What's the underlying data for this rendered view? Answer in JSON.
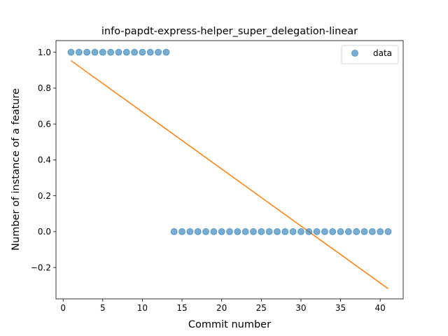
{
  "chart_data": {
    "type": "scatter",
    "title": "info-papdt-express-helper_super_delegation-linear",
    "xlabel": "Commit number",
    "ylabel": "Number of instance of a feature",
    "xlim": [
      -0.9,
      42.9
    ],
    "ylim": [
      -0.375,
      1.065
    ],
    "xticks": [
      0,
      5,
      10,
      15,
      20,
      25,
      30,
      35,
      40
    ],
    "yticks": [
      -0.2,
      0.0,
      0.2,
      0.4,
      0.6,
      0.8,
      1.0
    ],
    "xtick_labels": [
      "0",
      "5",
      "10",
      "15",
      "20",
      "25",
      "30",
      "35",
      "40"
    ],
    "ytick_labels": [
      "−0.2",
      "0.0",
      "0.2",
      "0.4",
      "0.6",
      "0.8",
      "1.0"
    ],
    "legend_position": "top-right",
    "series": [
      {
        "name": "data",
        "kind": "scatter",
        "color": "#1f77b4",
        "x": [
          1,
          2,
          3,
          4,
          5,
          6,
          7,
          8,
          9,
          10,
          11,
          12,
          13,
          14,
          15,
          16,
          17,
          18,
          19,
          20,
          21,
          22,
          23,
          24,
          25,
          26,
          27,
          28,
          29,
          30,
          31,
          32,
          33,
          34,
          35,
          36,
          37,
          38,
          39,
          40,
          41
        ],
        "y": [
          1,
          1,
          1,
          1,
          1,
          1,
          1,
          1,
          1,
          1,
          1,
          1,
          1,
          0,
          0,
          0,
          0,
          0,
          0,
          0,
          0,
          0,
          0,
          0,
          0,
          0,
          0,
          0,
          0,
          0,
          0,
          0,
          0,
          0,
          0,
          0,
          0,
          0,
          0,
          0,
          0
        ]
      },
      {
        "kind": "line",
        "color": "#ff7f0e",
        "x": [
          1,
          41
        ],
        "y": [
          0.953,
          -0.318
        ]
      }
    ]
  }
}
